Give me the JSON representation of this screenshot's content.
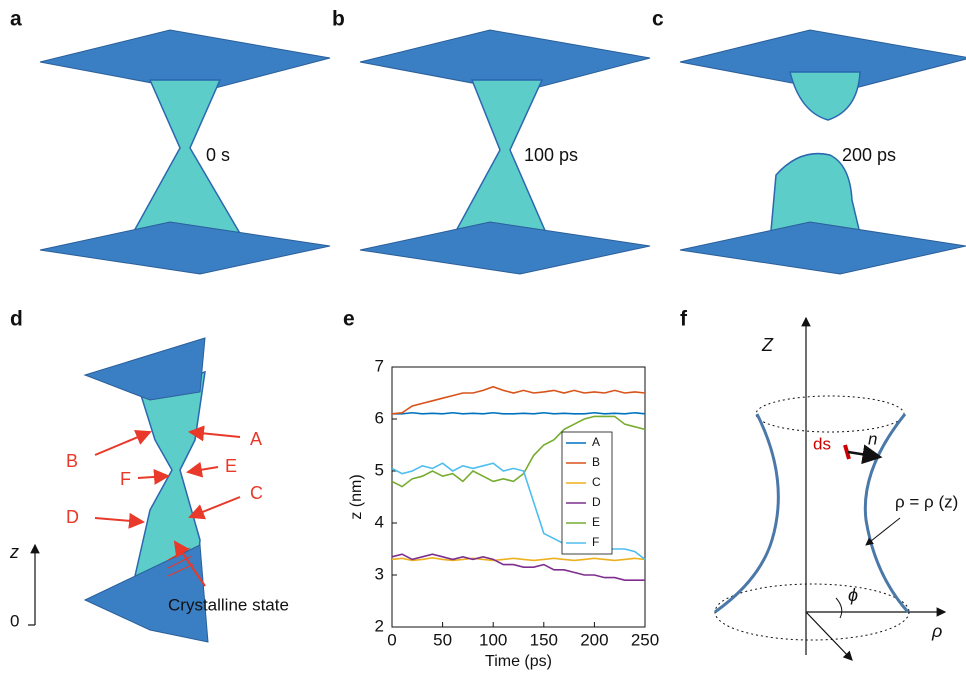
{
  "panels": [
    {
      "label": "a",
      "time": "0 s"
    },
    {
      "label": "b",
      "time": "100 ps"
    },
    {
      "label": "c",
      "time": "200 ps"
    }
  ],
  "panel_d": {
    "label": "d",
    "markers": [
      "B",
      "A",
      "F",
      "E",
      "D",
      "C"
    ],
    "annotation": "Crystalline state",
    "axis_label": "z",
    "axis_zero": "0"
  },
  "panel_f": {
    "label": "f",
    "z_label": "Z",
    "ds_label": "ds",
    "n_label": "n",
    "equation": "ρ = ρ (z)",
    "rho_label": "ρ",
    "phi_label": "ϕ"
  },
  "chart_data": {
    "type": "line",
    "panel_label": "e",
    "xlabel": "Time (ps)",
    "ylabel": "z (nm)",
    "xlim": [
      0,
      250
    ],
    "xticks": [
      0,
      50,
      100,
      150,
      200,
      250
    ],
    "ylim": [
      2,
      7
    ],
    "yticks": [
      2,
      3,
      4,
      5,
      6,
      7
    ],
    "legend": "right",
    "x": [
      0,
      10,
      20,
      30,
      40,
      50,
      60,
      70,
      80,
      90,
      100,
      110,
      120,
      130,
      140,
      150,
      160,
      170,
      180,
      190,
      200,
      210,
      220,
      230,
      240,
      250
    ],
    "series": [
      {
        "name": "A",
        "color": "#0072bd",
        "values": [
          6.1,
          6.1,
          6.12,
          6.1,
          6.11,
          6.1,
          6.12,
          6.1,
          6.11,
          6.1,
          6.12,
          6.1,
          6.1,
          6.11,
          6.1,
          6.12,
          6.1,
          6.11,
          6.1,
          6.1,
          6.12,
          6.1,
          6.11,
          6.1,
          6.12,
          6.1
        ]
      },
      {
        "name": "B",
        "color": "#d95319",
        "values": [
          6.1,
          6.12,
          6.25,
          6.3,
          6.35,
          6.4,
          6.45,
          6.5,
          6.5,
          6.55,
          6.62,
          6.55,
          6.5,
          6.55,
          6.5,
          6.52,
          6.55,
          6.5,
          6.55,
          6.5,
          6.52,
          6.5,
          6.55,
          6.5,
          6.52,
          6.5
        ]
      },
      {
        "name": "C",
        "color": "#edb120",
        "values": [
          3.3,
          3.32,
          3.28,
          3.3,
          3.33,
          3.3,
          3.28,
          3.3,
          3.32,
          3.3,
          3.28,
          3.3,
          3.32,
          3.3,
          3.28,
          3.3,
          3.32,
          3.3,
          3.28,
          3.3,
          3.32,
          3.3,
          3.28,
          3.3,
          3.32,
          3.3
        ]
      },
      {
        "name": "D",
        "color": "#7e2f8e",
        "values": [
          3.35,
          3.4,
          3.3,
          3.35,
          3.4,
          3.35,
          3.3,
          3.35,
          3.3,
          3.35,
          3.3,
          3.2,
          3.2,
          3.15,
          3.15,
          3.2,
          3.1,
          3.1,
          3.05,
          3.0,
          3.0,
          2.95,
          2.95,
          2.9,
          2.9,
          2.9
        ]
      },
      {
        "name": "E",
        "color": "#77ac30",
        "values": [
          4.8,
          4.7,
          4.85,
          4.9,
          5.0,
          4.9,
          4.95,
          4.8,
          5.0,
          4.9,
          4.8,
          4.85,
          4.8,
          4.95,
          5.3,
          5.5,
          5.6,
          5.8,
          5.9,
          6.0,
          6.05,
          6.05,
          6.05,
          5.9,
          5.85,
          5.8
        ]
      },
      {
        "name": "F",
        "color": "#4dbeee",
        "values": [
          5.05,
          4.95,
          5.0,
          5.1,
          5.05,
          5.15,
          5.0,
          5.1,
          5.05,
          5.1,
          5.15,
          5.0,
          5.05,
          5.0,
          4.4,
          3.8,
          3.7,
          3.6,
          3.6,
          3.55,
          3.55,
          3.5,
          3.5,
          3.5,
          3.45,
          3.3
        ]
      }
    ]
  }
}
